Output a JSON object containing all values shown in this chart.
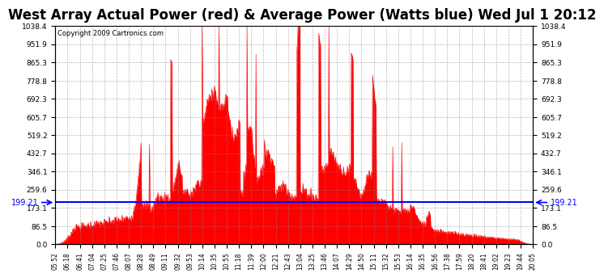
{
  "title": "West Array Actual Power (red) & Average Power (Watts blue) Wed Jul 1 20:12",
  "copyright": "Copyright 2009 Cartronics.com",
  "avg_power": 199.21,
  "ymax": 1038.4,
  "ymin": 0.0,
  "yticks": [
    0.0,
    86.5,
    173.1,
    259.6,
    346.1,
    432.7,
    519.2,
    605.7,
    692.3,
    778.8,
    865.3,
    951.9,
    1038.4
  ],
  "ytick_labels": [
    "0.0",
    "86.5",
    "173.1",
    "259.6",
    "346.1",
    "432.7",
    "519.2",
    "605.7",
    "692.3",
    "778.8",
    "865.3",
    "951.9",
    "1038.4"
  ],
  "xtick_labels": [
    "05:52",
    "06:18",
    "06:41",
    "07:04",
    "07:25",
    "07:46",
    "08:07",
    "08:28",
    "08:49",
    "09:11",
    "09:32",
    "09:53",
    "10:14",
    "10:35",
    "10:55",
    "11:18",
    "11:39",
    "12:00",
    "12:21",
    "12:43",
    "13:04",
    "13:25",
    "13:46",
    "14:07",
    "14:29",
    "14:50",
    "15:11",
    "15:32",
    "15:53",
    "16:14",
    "16:35",
    "16:56",
    "17:38",
    "17:59",
    "18:20",
    "18:41",
    "19:02",
    "19:23",
    "19:44",
    "20:05"
  ],
  "title_fontsize": 12,
  "copyright_fontsize": 6,
  "background_color": "#ffffff",
  "plot_bg_color": "#ffffff",
  "red_color": "#ff0000",
  "blue_color": "#0000ff",
  "grid_color": "#888888"
}
